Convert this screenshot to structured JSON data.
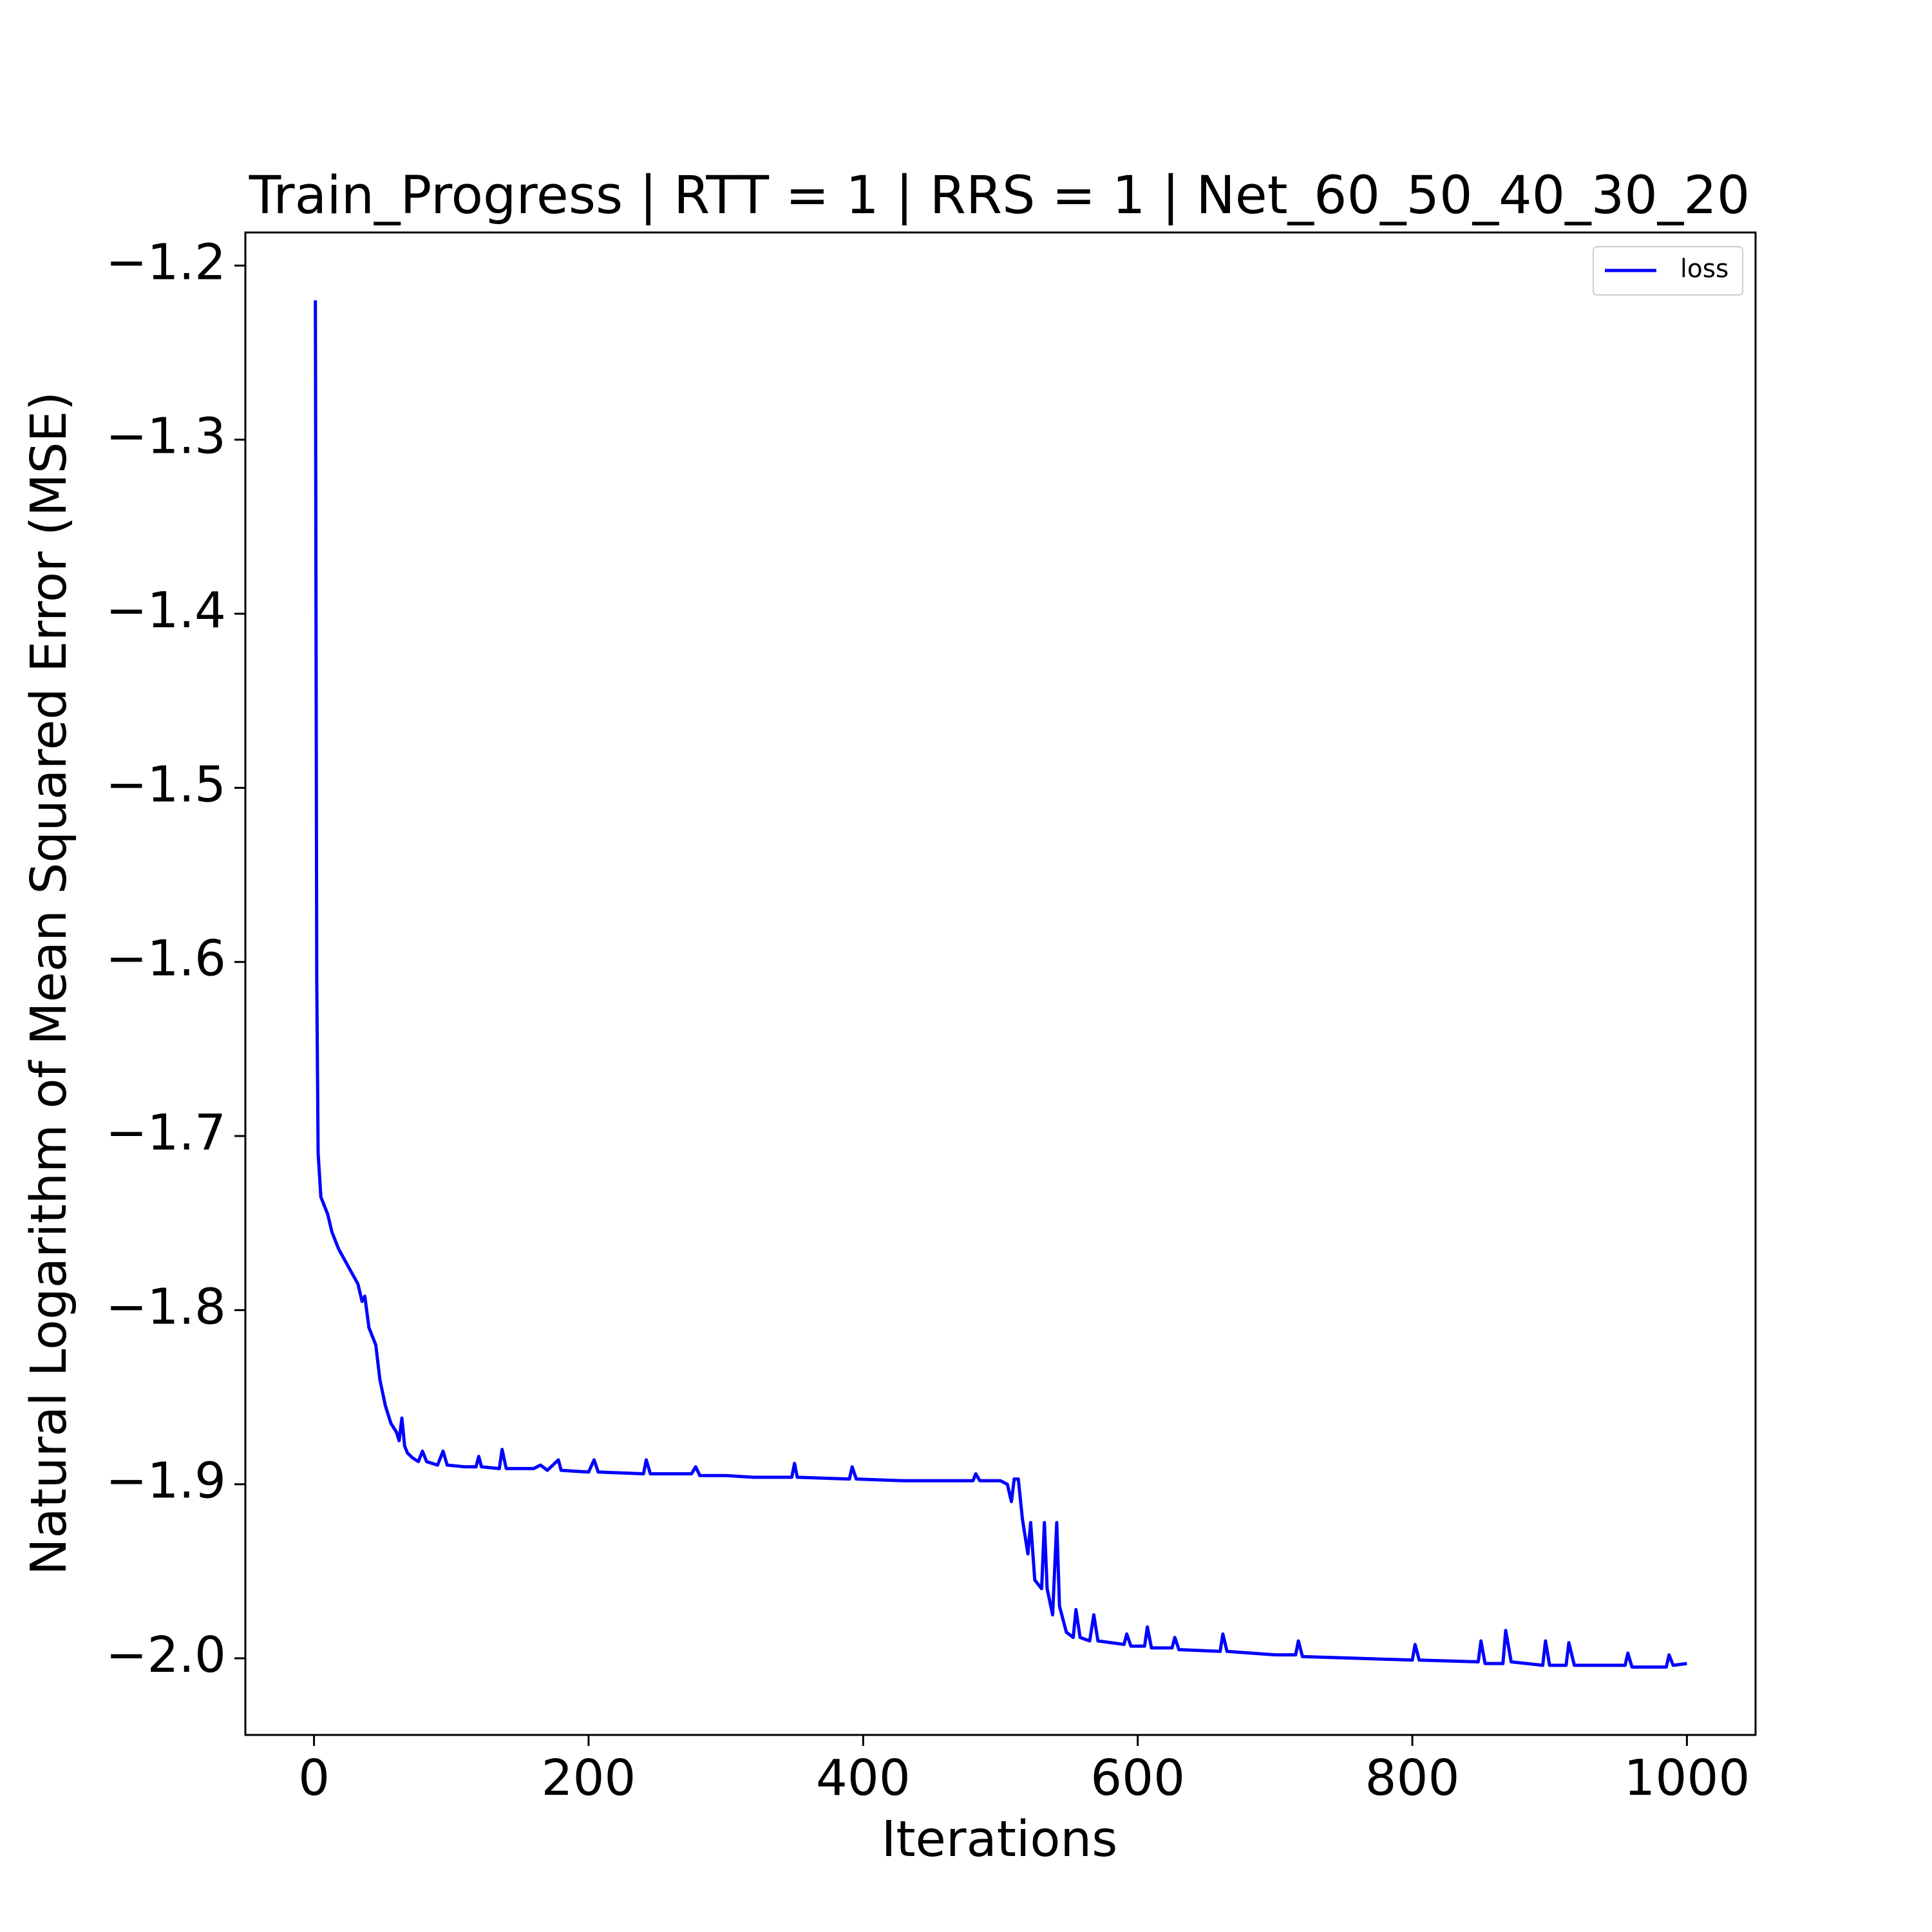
{
  "chart_data": {
    "type": "line",
    "title": "Train_Progress | RTT = 1 | RRS = 1 | Net_60_50_40_30_20",
    "x_label": "Iterations",
    "y_label": "Natural Logarithm of Mean Squared Error (MSE)",
    "xlim": [
      -50,
      1050
    ],
    "ylim": [
      -2.044,
      -1.181
    ],
    "xticks": [
      0,
      200,
      400,
      600,
      800,
      1000
    ],
    "yticks": [
      {
        "value": -1.2,
        "label": "−1.2"
      },
      {
        "value": -1.3,
        "label": "−1.3"
      },
      {
        "value": -1.4,
        "label": "−1.4"
      },
      {
        "value": -1.5,
        "label": "−1.5"
      },
      {
        "value": -1.6,
        "label": "−1.6"
      },
      {
        "value": -1.7,
        "label": "−1.7"
      },
      {
        "value": -1.8,
        "label": "−1.8"
      },
      {
        "value": -1.9,
        "label": "−1.9"
      },
      {
        "value": -2.0,
        "label": "−2.0"
      }
    ],
    "grid": false,
    "legend": "upper right",
    "x": [
      1,
      2,
      3,
      5,
      10,
      13,
      18,
      25,
      32,
      35,
      37,
      40,
      45,
      48,
      52,
      56,
      60,
      62,
      64,
      66,
      68,
      72,
      76,
      79,
      82,
      90,
      94,
      97,
      110,
      118,
      120,
      122,
      135,
      137,
      140,
      160,
      165,
      170,
      178,
      180,
      200,
      204,
      207,
      240,
      242,
      245,
      275,
      278,
      281,
      300,
      320,
      348,
      350,
      352,
      390,
      392,
      395,
      430,
      480,
      482,
      485,
      500,
      505,
      508,
      510,
      513,
      516,
      520,
      522,
      525,
      530,
      532,
      534,
      538,
      541,
      543,
      548,
      553,
      555,
      558,
      565,
      568,
      571,
      590,
      592,
      595,
      605,
      607,
      610,
      625,
      627,
      630,
      660,
      662,
      665,
      700,
      715,
      717,
      720,
      760,
      800,
      802,
      805,
      848,
      850,
      853,
      866,
      868,
      872,
      895,
      897,
      900,
      912,
      914,
      918,
      955,
      957,
      960,
      985,
      987,
      990,
      1000
    ],
    "series": [
      {
        "name": "loss",
        "color": "#0000ff",
        "values": [
          -1.22,
          -1.61,
          -1.71,
          -1.735,
          -1.745,
          -1.755,
          -1.765,
          -1.775,
          -1.785,
          -1.795,
          -1.792,
          -1.81,
          -1.82,
          -1.84,
          -1.855,
          -1.865,
          -1.87,
          -1.875,
          -1.862,
          -1.878,
          -1.882,
          -1.885,
          -1.887,
          -1.881,
          -1.887,
          -1.889,
          -1.881,
          -1.889,
          -1.89,
          -1.89,
          -1.884,
          -1.89,
          -1.891,
          -1.88,
          -1.891,
          -1.891,
          -1.889,
          -1.892,
          -1.886,
          -1.892,
          -1.893,
          -1.886,
          -1.893,
          -1.894,
          -1.886,
          -1.894,
          -1.894,
          -1.89,
          -1.895,
          -1.895,
          -1.896,
          -1.896,
          -1.888,
          -1.896,
          -1.897,
          -1.89,
          -1.897,
          -1.898,
          -1.898,
          -1.894,
          -1.898,
          -1.898,
          -1.9,
          -1.91,
          -1.897,
          -1.897,
          -1.92,
          -1.94,
          -1.922,
          -1.955,
          -1.96,
          -1.922,
          -1.96,
          -1.975,
          -1.922,
          -1.97,
          -1.985,
          -1.988,
          -1.972,
          -1.988,
          -1.99,
          -1.975,
          -1.99,
          -1.992,
          -1.986,
          -1.993,
          -1.993,
          -1.982,
          -1.994,
          -1.994,
          -1.988,
          -1.995,
          -1.996,
          -1.986,
          -1.996,
          -1.998,
          -1.998,
          -1.99,
          -1.999,
          -2.0,
          -2.001,
          -1.992,
          -2.001,
          -2.002,
          -1.99,
          -2.003,
          -2.003,
          -1.984,
          -2.002,
          -2.004,
          -1.99,
          -2.004,
          -2.004,
          -1.991,
          -2.004,
          -2.004,
          -1.997,
          -2.005,
          -2.005,
          -1.998,
          -2.004,
          -2.003
        ]
      }
    ]
  }
}
